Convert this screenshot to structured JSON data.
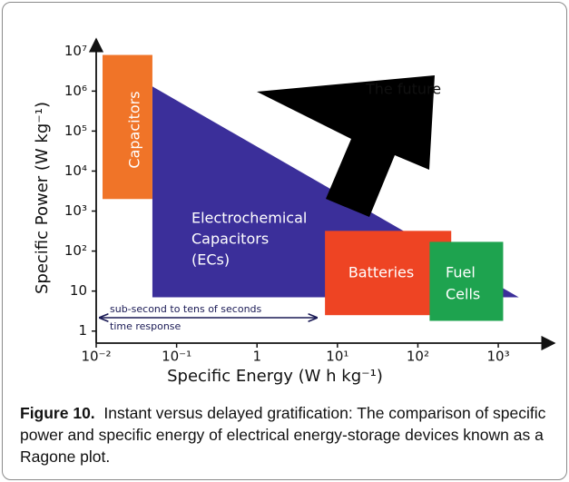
{
  "chart_data": {
    "type": "ragone",
    "xlabel": "Specific Energy (W h kg⁻¹)",
    "ylabel": "Specific Power (W kg⁻¹)",
    "xscale": "log",
    "yscale": "log",
    "xlim": [
      0.01,
      5000
    ],
    "ylim": [
      0.5,
      20000000
    ],
    "xticks": [
      {
        "value": 0.01,
        "label": "10⁻²"
      },
      {
        "value": 0.1,
        "label": "10⁻¹"
      },
      1,
      {
        "value": 10,
        "label": "10¹"
      },
      {
        "value": 100,
        "label": "10²"
      },
      {
        "value": 1000,
        "label": "10³"
      }
    ],
    "yticks": [
      1,
      10,
      {
        "value": 100,
        "label": "10²"
      },
      {
        "value": 1000,
        "label": "10³"
      },
      {
        "value": 10000,
        "label": "10⁴"
      },
      {
        "value": 100000,
        "label": "10⁵"
      },
      {
        "value": 1000000,
        "label": "10⁶"
      },
      {
        "value": 10000000,
        "label": "10⁷"
      }
    ],
    "regions": [
      {
        "shape": "polygon",
        "label": [
          "Electrochemical",
          "Capacitors",
          "(ECs)"
        ],
        "color": "#3b2f9a",
        "x": [
          0.05,
          1800,
          0.05
        ],
        "y": [
          1300000,
          7,
          7
        ]
      },
      {
        "shape": "rect",
        "label": [
          "Capacitors"
        ],
        "color": "#f07428",
        "x": [
          0.012,
          0.05
        ],
        "y": [
          2000,
          8000000
        ]
      },
      {
        "shape": "rect",
        "label": [
          "Batteries"
        ],
        "color": "#ee4423",
        "x": [
          7,
          260
        ],
        "y": [
          2.5,
          320
        ]
      },
      {
        "shape": "rect",
        "label": [
          "Fuel",
          "Cells"
        ],
        "color": "#1ea34f",
        "x": [
          140,
          1150
        ],
        "y": [
          1.8,
          170
        ]
      }
    ],
    "annotations": [
      "The future",
      "sub-second to tens of seconds",
      "time response"
    ]
  },
  "caption": {
    "label": "Figure 10.",
    "text": "Instant versus delayed gratification: The comparison of specific power and specific energy of electrical energy-storage devices known as a Ragone plot."
  }
}
